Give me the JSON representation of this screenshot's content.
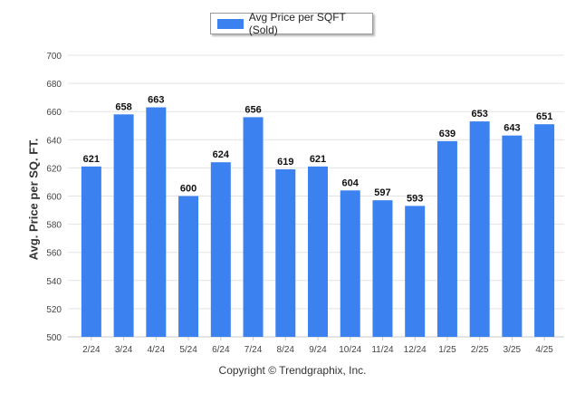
{
  "legend": {
    "label": "Avg Price per SQFT (Sold)"
  },
  "copyright": "Copyright © Trendgraphix, Inc.",
  "colors": {
    "bar": "#3b82f0",
    "grid": "#e3e3e3",
    "text": "#333333"
  },
  "chart_data": {
    "type": "bar",
    "title": "",
    "xlabel": "",
    "ylabel": "Avg. Price per SQ. FT.",
    "ylim": [
      500,
      700
    ],
    "yticks": [
      500,
      520,
      540,
      560,
      580,
      600,
      620,
      640,
      660,
      680,
      700
    ],
    "grid": true,
    "legend_position": "top-center",
    "categories": [
      "2/24",
      "3/24",
      "4/24",
      "5/24",
      "6/24",
      "7/24",
      "8/24",
      "9/24",
      "10/24",
      "11/24",
      "12/24",
      "1/25",
      "2/25",
      "3/25",
      "4/25"
    ],
    "series": [
      {
        "name": "Avg Price per SQFT (Sold)",
        "values": [
          621,
          658,
          663,
          600,
          624,
          656,
          619,
          621,
          604,
          597,
          593,
          639,
          653,
          643,
          651
        ]
      }
    ]
  }
}
